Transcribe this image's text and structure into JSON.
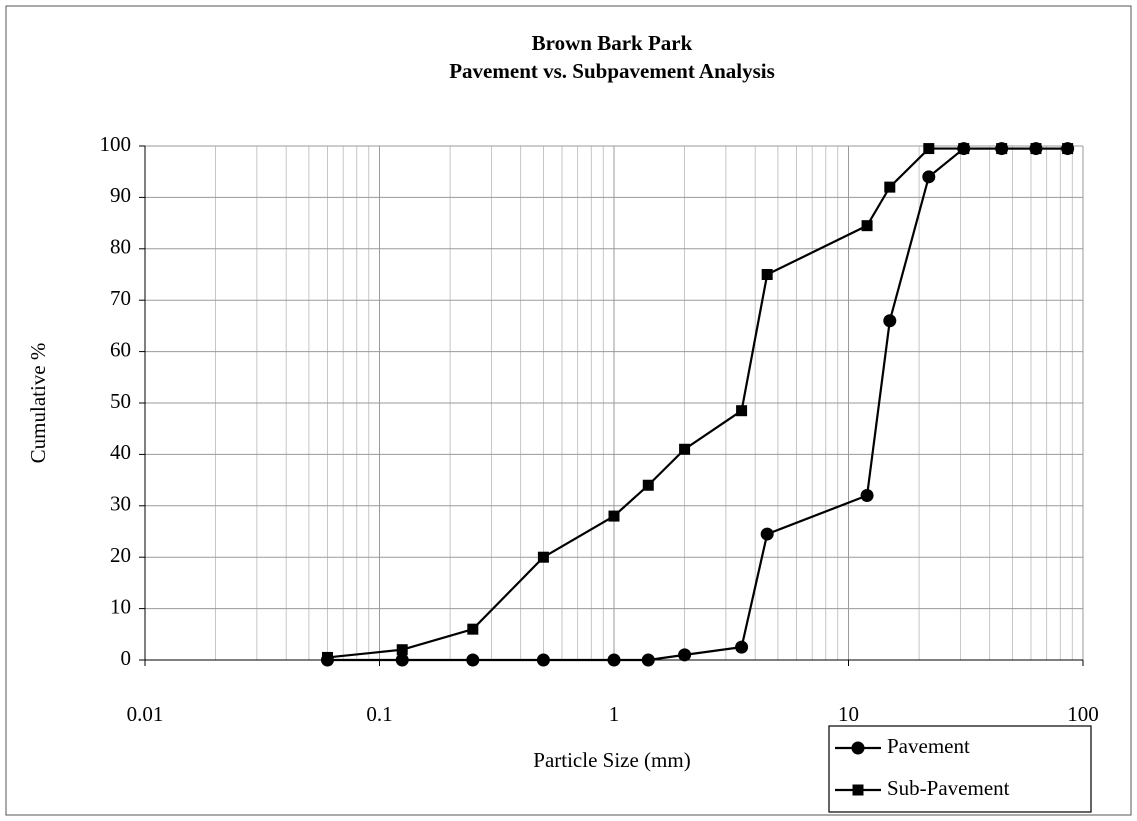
{
  "chart_data": {
    "type": "line",
    "title": "Brown Bark Park",
    "subtitle": "Pavement vs. Subpavement Analysis",
    "x_label": "Particle Size (mm)",
    "y_label": "Cumulative %",
    "x_scale": "log",
    "minor_grid": true,
    "grid": true,
    "legend": "bottom-right",
    "x": [
      0.06,
      0.125,
      0.25,
      0.5,
      1,
      1.4,
      2,
      3.5,
      4.5,
      12,
      15,
      22,
      31,
      45,
      63,
      86
    ],
    "series": [
      {
        "name": "Pavement",
        "color": "#000000",
        "marker": "circle",
        "values": [
          0,
          0,
          0,
          0,
          0,
          0,
          1,
          2.5,
          24.5,
          32,
          66,
          94,
          99.5,
          99.5,
          99.5,
          99.5
        ]
      },
      {
        "name": "Sub-Pavement",
        "color": "#000000",
        "marker": "square",
        "values": [
          0.5,
          2,
          6,
          20,
          28,
          34,
          41,
          48.5,
          75,
          84.5,
          92,
          99.5,
          99.5,
          99.5,
          99.5,
          99.5
        ]
      }
    ],
    "xlim": [
      0.01,
      100
    ],
    "xticks": [
      0.01,
      0.1,
      1,
      10,
      100
    ],
    "ylim": [
      0,
      100
    ],
    "yticks": [
      0,
      10,
      20,
      30,
      40,
      50,
      60,
      70,
      80,
      90,
      100
    ]
  }
}
